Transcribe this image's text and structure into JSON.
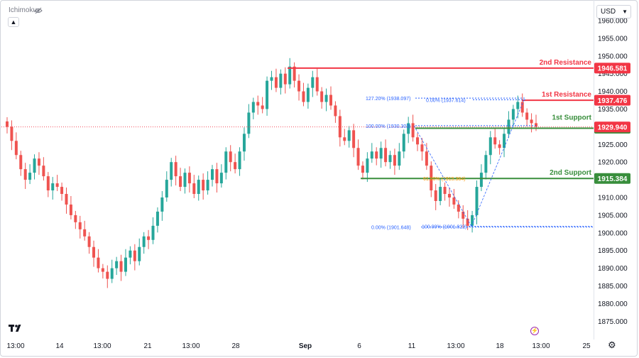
{
  "header": {
    "indicator_label": "Ichimoku",
    "currency": "USD"
  },
  "colors": {
    "up": "#26a69a",
    "down": "#ef5350",
    "resistance": "#f23645",
    "support": "#388e3c",
    "fib": "#2962ff",
    "fib_mid": "#ff9800",
    "axis_text": "#131722"
  },
  "chart_data": {
    "type": "candlestick",
    "title": "",
    "y_axis": {
      "range": [
        1870,
        1962
      ],
      "ticks": [
        "1960.000",
        "1955.000",
        "1950.000",
        "1945.000",
        "1940.000",
        "1935.000",
        "1930.000",
        "1925.000",
        "1920.000",
        "1915.000",
        "1910.000",
        "1905.000",
        "1900.000",
        "1895.000",
        "1890.000",
        "1885.000",
        "1880.000",
        "1875.000"
      ]
    },
    "x_axis": {
      "tick_labels": [
        "13:00",
        "14",
        "13:00",
        "21",
        "13:00",
        "28",
        "Sep",
        "6",
        "11",
        "13:00",
        "18",
        "13:00",
        "25"
      ]
    },
    "levels": [
      {
        "name": "2nd Resistance",
        "price": "1946.581",
        "value": 1946.581,
        "kind": "resistance"
      },
      {
        "name": "1st Resistance",
        "price": "1937.476",
        "value": 1937.476,
        "kind": "resistance"
      },
      {
        "name": "1st Support",
        "price": "1929.576",
        "value": 1929.576,
        "kind": "support"
      },
      {
        "name": "2nd Support",
        "price": "1915.384",
        "value": 1915.384,
        "kind": "support"
      }
    ],
    "current_price": {
      "price": "1929.940",
      "value": 1929.94
    },
    "fib_labels": [
      {
        "text": "127.20% (1938.097)",
        "value": 1938.097
      },
      {
        "text": "0.00% (1937.614)",
        "value": 1937.614
      },
      {
        "text": "100.00% (1930.303)",
        "value": 1930.303
      },
      {
        "text": "61.80% (1915.384)",
        "value": 1915.384
      },
      {
        "text": "0.00% (1901.648)",
        "value": 1901.648
      },
      {
        "text": "100.00% (1901.822)",
        "value": 1901.822
      }
    ],
    "closes": [
      1930,
      1926,
      1922,
      1918,
      1915,
      1917,
      1921,
      1919,
      1916,
      1912,
      1914,
      1913,
      1911,
      1908,
      1905,
      1903,
      1901,
      1899,
      1896,
      1893,
      1890,
      1889,
      1887,
      1890,
      1892,
      1889,
      1893,
      1895,
      1892,
      1896,
      1899,
      1898,
      1902,
      1906,
      1910,
      1915,
      1920,
      1916,
      1913,
      1917,
      1914,
      1911,
      1915,
      1912,
      1915,
      1918,
      1914,
      1917,
      1923,
      1920,
      1918,
      1923,
      1928,
      1934,
      1937,
      1936,
      1935,
      1943,
      1944,
      1941,
      1945,
      1942,
      1947,
      1943,
      1940,
      1937,
      1941,
      1944,
      1940,
      1937,
      1939,
      1936,
      1933,
      1927,
      1926,
      1929,
      1924,
      1919,
      1917,
      1921,
      1923,
      1921,
      1924,
      1920,
      1922,
      1919,
      1923,
      1928,
      1931,
      1927,
      1925,
      1923,
      1919,
      1912,
      1909,
      1913,
      1911,
      1910,
      1908,
      1906,
      1904,
      1902,
      1905,
      1913,
      1917,
      1922,
      1927,
      1925,
      1924,
      1928,
      1932,
      1935,
      1937,
      1934,
      1932,
      1931,
      1930
    ]
  }
}
